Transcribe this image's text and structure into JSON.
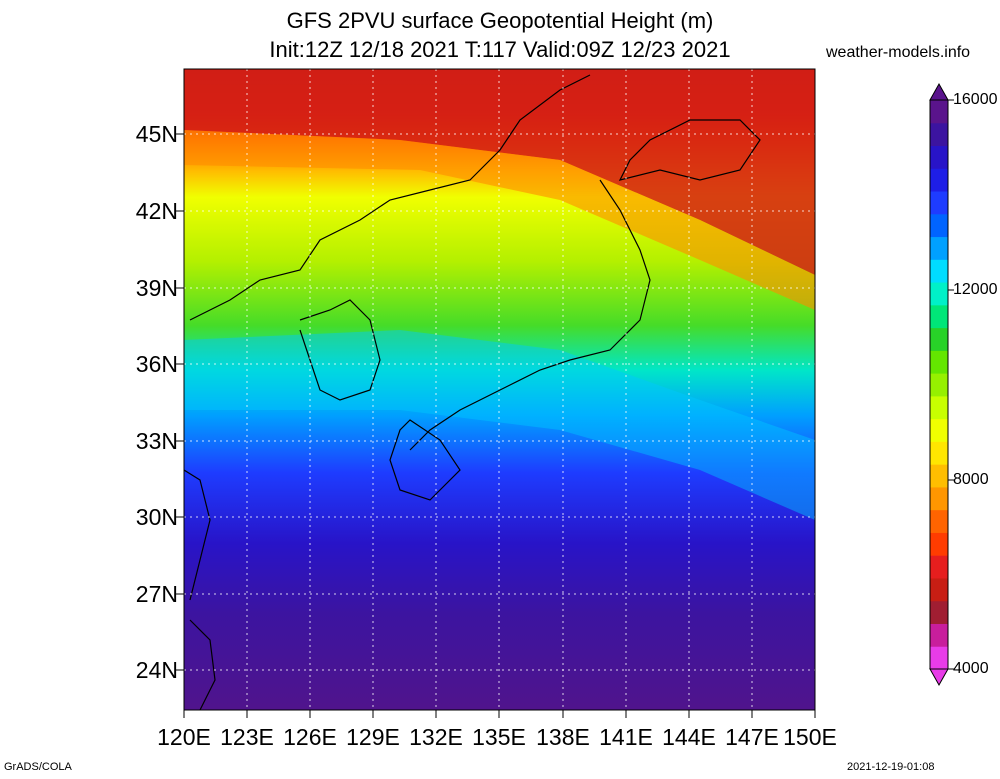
{
  "title": {
    "line1": "GFS 2PVU surface Geopotential Height (m)",
    "line2": "Init:12Z 12/18 2021 T:117 Valid:09Z 12/23 2021"
  },
  "site": "weather-models.info",
  "footer": {
    "left": "GrADS/COLA",
    "right": "2021-12-19-01:08"
  },
  "lat_labels": [
    "45N",
    "42N",
    "39N",
    "36N",
    "33N",
    "30N",
    "27N",
    "24N"
  ],
  "lon_labels": [
    "120E",
    "123E",
    "126E",
    "129E",
    "132E",
    "135E",
    "138E",
    "141E",
    "144E",
    "147E",
    "150E"
  ],
  "colorbar": {
    "labels": [
      "16000",
      "12000",
      "8000",
      "4000"
    ],
    "colors": [
      "#e83ce8",
      "#c81e9c",
      "#a01e32",
      "#c81e14",
      "#e61e1e",
      "#ff3c00",
      "#ff6400",
      "#ff9600",
      "#ffbe00",
      "#ffe600",
      "#f0ff00",
      "#c8ff00",
      "#96f000",
      "#64e600",
      "#28d228",
      "#00e678",
      "#00f0c8",
      "#00dcff",
      "#00a0ff",
      "#0064ff",
      "#1e3cff",
      "#1e1ee6",
      "#2814c8",
      "#3c14a0",
      "#5a148c"
    ]
  }
}
